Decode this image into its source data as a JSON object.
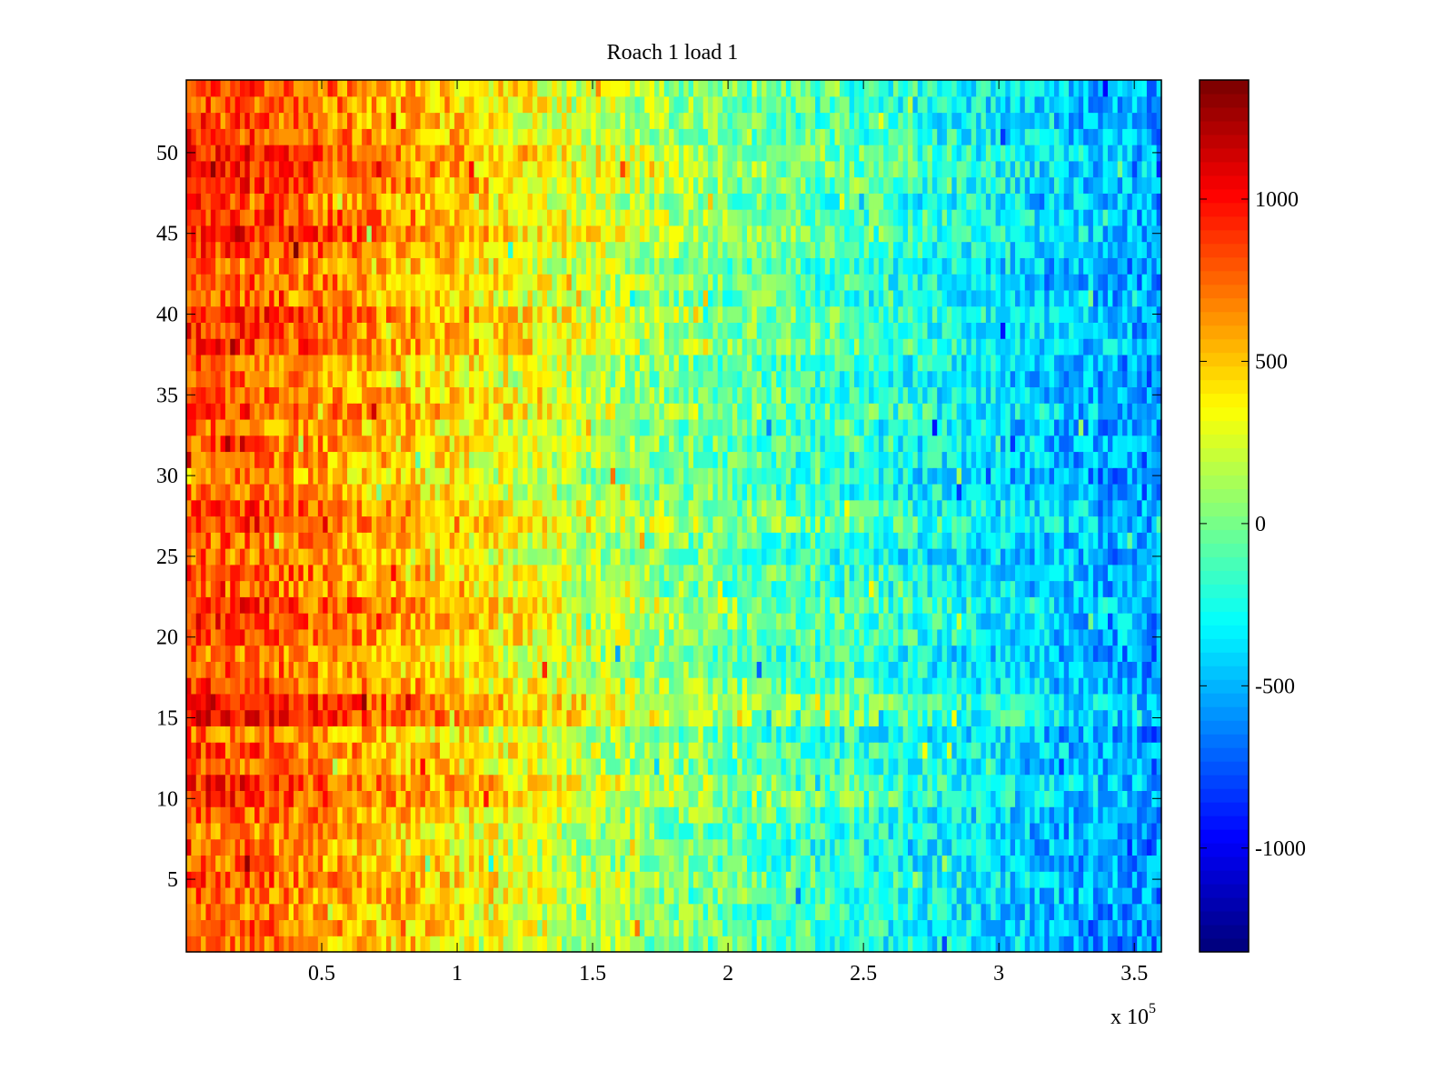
{
  "chart_data": {
    "type": "heatmap",
    "title": "Roach 1 load 1",
    "xlabel": "",
    "ylabel": "",
    "x_multiplier_label": "x 10",
    "x_multiplier_exponent": "5",
    "xlim": [
      0,
      3.6
    ],
    "ylim": [
      0.5,
      54.5
    ],
    "n_rows": 54,
    "n_cols": 200,
    "xticks": [
      "0.5",
      "1",
      "1.5",
      "2",
      "2.5",
      "3",
      "3.5"
    ],
    "xtick_values": [
      0.5,
      1,
      1.5,
      2,
      2.5,
      3,
      3.5
    ],
    "yticks": [
      "5",
      "10",
      "15",
      "20",
      "25",
      "30",
      "35",
      "40",
      "45",
      "50"
    ],
    "ytick_values": [
      5,
      10,
      15,
      20,
      25,
      30,
      35,
      40,
      45,
      50
    ],
    "colormap": "jet",
    "clim": [
      -1320,
      1367
    ],
    "colorbar_ticks": [
      "1000",
      "500",
      "0",
      "-500",
      "-1000"
    ],
    "colorbar_tick_values": [
      1000,
      500,
      0,
      -500,
      -1000
    ],
    "column_trend": {
      "x": [
        0,
        0.25,
        0.5,
        0.75,
        1.0,
        1.25,
        1.5,
        2.0,
        2.5,
        3.0,
        3.3,
        3.6
      ],
      "value": [
        750,
        700,
        600,
        480,
        380,
        250,
        120,
        -80,
        -230,
        -400,
        -520,
        -620
      ]
    },
    "row_offsets": [
      0,
      50,
      0,
      50,
      100,
      0,
      -50,
      0,
      50,
      200,
      200,
      50,
      100,
      0,
      300,
      300,
      150,
      50,
      0,
      150,
      150,
      200,
      50,
      100,
      0,
      50,
      200,
      150,
      0,
      -50,
      0,
      50,
      0,
      150,
      50,
      0,
      50,
      200,
      150,
      200,
      50,
      100,
      50,
      150,
      250,
      200,
      100,
      200,
      250,
      250,
      150,
      100,
      100,
      150
    ],
    "noise_amplitude": 260
  }
}
